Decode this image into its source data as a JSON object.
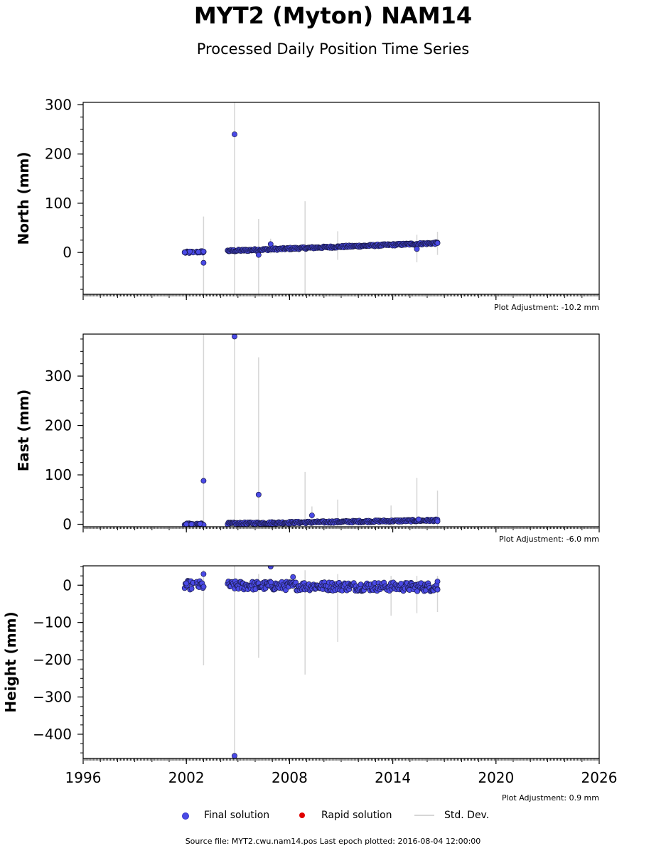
{
  "title": "MYT2 (Myton) NAM14",
  "subtitle": "Processed Daily Position Time Series",
  "legend": {
    "final": "Final solution",
    "rapid": "Rapid solution",
    "std": "Std. Dev."
  },
  "footer": "Source file: MYT2.cwu.nam14.pos  Last epoch plotted: 2016-08-04 12:00:00",
  "colors": {
    "final": "#4a4ae6",
    "rapid": "#e00000",
    "std": "#d6d6d6"
  },
  "chart_data": [
    {
      "type": "scatter",
      "ylabel": "North (mm)",
      "adjustment": "Plot Adjustment: -10.2 mm",
      "xlim": [
        1996,
        2026
      ],
      "ylim": [
        -85,
        305
      ],
      "yticks": [
        0,
        100,
        200,
        300
      ],
      "xticks": [],
      "trend": [
        [
          2002.0,
          0
        ],
        [
          2016.6,
          19
        ]
      ],
      "points": [
        [
          2001.9,
          0
        ],
        [
          2002.2,
          2
        ],
        [
          2002.7,
          1
        ],
        [
          2003.0,
          2
        ],
        [
          2003.0,
          -21
        ],
        [
          2004.8,
          240
        ],
        [
          2006.2,
          -5
        ],
        [
          2006.9,
          17
        ],
        [
          2015.4,
          7
        ],
        [
          2016.6,
          19
        ]
      ],
      "std": [
        [
          2003.0,
          -85,
          73
        ],
        [
          2004.8,
          -85,
          305
        ],
        [
          2006.2,
          -85,
          68
        ],
        [
          2006.9,
          -2,
          28
        ],
        [
          2008.9,
          -85,
          104
        ],
        [
          2010.8,
          -15,
          43
        ],
        [
          2015.4,
          -20,
          36
        ],
        [
          2016.6,
          -5,
          42
        ]
      ]
    },
    {
      "type": "scatter",
      "ylabel": "East (mm)",
      "adjustment": "Plot Adjustment: -6.0 mm",
      "xlim": [
        1996,
        2026
      ],
      "ylim": [
        -5,
        385
      ],
      "yticks": [
        0,
        100,
        200,
        300
      ],
      "xticks": [],
      "trend": [
        [
          2002.0,
          0
        ],
        [
          2016.6,
          8
        ]
      ],
      "points": [
        [
          2002.0,
          0
        ],
        [
          2002.3,
          0
        ],
        [
          2002.8,
          1
        ],
        [
          2003.0,
          88
        ],
        [
          2004.8,
          380
        ],
        [
          2006.2,
          60
        ],
        [
          2009.3,
          18
        ],
        [
          2015.5,
          10
        ],
        [
          2016.6,
          6
        ]
      ],
      "std": [
        [
          2003.0,
          -5,
          385
        ],
        [
          2004.8,
          -5,
          385
        ],
        [
          2006.2,
          -5,
          338
        ],
        [
          2008.9,
          -5,
          106
        ],
        [
          2009.3,
          -5,
          36
        ],
        [
          2010.8,
          -5,
          50
        ],
        [
          2013.9,
          -5,
          38
        ],
        [
          2015.4,
          -5,
          94
        ],
        [
          2016.6,
          -5,
          68
        ]
      ]
    },
    {
      "type": "scatter",
      "ylabel": "Height (mm)",
      "adjustment": "Plot Adjustment: 0.9 mm",
      "xlim": [
        1996,
        2026
      ],
      "ylim": [
        -465,
        52
      ],
      "yticks": [
        0,
        -100,
        -200,
        -300,
        -400
      ],
      "xticks": [
        1996,
        2002,
        2008,
        2014,
        2020,
        2026
      ],
      "trend": [
        [
          2002.0,
          0
        ],
        [
          2016.6,
          -5
        ]
      ],
      "points": [
        [
          2003.0,
          30
        ],
        [
          2004.8,
          -458
        ],
        [
          2006.9,
          50
        ],
        [
          2008.2,
          22
        ],
        [
          2002.0,
          5
        ],
        [
          2016.6,
          10
        ],
        [
          2016.6,
          -12
        ]
      ],
      "std": [
        [
          2003.0,
          -215,
          40
        ],
        [
          2004.8,
          -465,
          52
        ],
        [
          2006.2,
          -195,
          30
        ],
        [
          2008.9,
          -240,
          40
        ],
        [
          2010.8,
          -152,
          30
        ],
        [
          2013.9,
          -82,
          25
        ],
        [
          2015.4,
          -75,
          25
        ],
        [
          2016.6,
          -72,
          25
        ]
      ]
    }
  ]
}
